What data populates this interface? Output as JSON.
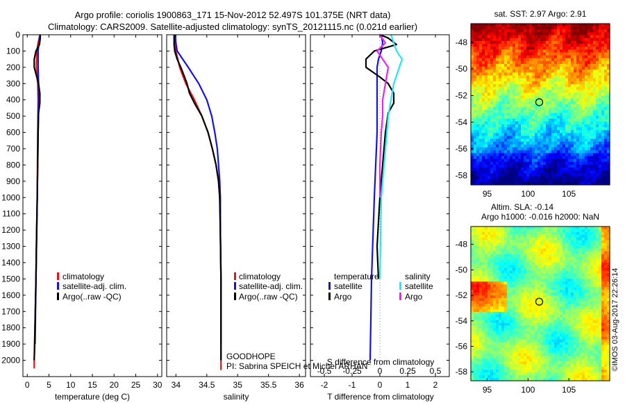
{
  "title_line1": "Argo profile: coriolis 1900863_171 15-Nov-2012 52.497S 101.375E (NRT data)",
  "title_line2": "Climatology: CARS2009. Satellite-adjusted climatology: synTS_20121115.nc (0.021d earlier)",
  "float_info": {
    "project": "GOODHOPE",
    "pi": "PI: Sabrina SPEICH et Michel ARHAN"
  },
  "credit": "©IMOS 03-Aug-2017 22:26:14",
  "colors": {
    "climatology": "#ee1111",
    "satellite": "#1111ee",
    "argo": "#000000",
    "s_satellite": "#22e8f0",
    "s_argo": "#ee22ee"
  },
  "chart_data": [
    {
      "type": "line",
      "xlabel": "temperature (deg C)",
      "ylabel": "",
      "xlim": [
        -1,
        31
      ],
      "ylim": [
        2100,
        0
      ],
      "xticks": [
        "0",
        "5",
        "10",
        "15",
        "20",
        "25",
        "30"
      ],
      "yticks": [
        "0",
        "100",
        "200",
        "300",
        "400",
        "500",
        "600",
        "700",
        "800",
        "900",
        "1000",
        "1100",
        "1200",
        "1300",
        "1400",
        "1500",
        "1600",
        "1700",
        "1800",
        "1900",
        "2000"
      ],
      "legend": [
        "climatology",
        "satellite-adj. clim.",
        "Argo(..raw -QC)"
      ],
      "series": [
        {
          "name": "climatology",
          "depth": [
            0,
            50,
            100,
            200,
            300,
            400,
            600,
            1000,
            1500,
            2000,
            2050
          ],
          "values": [
            2.9,
            2.5,
            2.2,
            2.1,
            2.4,
            2.5,
            2.4,
            2.3,
            2.0,
            1.6,
            1.6
          ]
        },
        {
          "name": "satellite-adj. clim.",
          "depth": [
            0,
            50,
            100,
            200,
            300,
            400,
            600,
            1000,
            1500,
            1900
          ],
          "values": [
            3.0,
            2.7,
            2.5,
            2.5,
            2.6,
            2.6,
            2.5,
            2.3,
            2.0,
            1.8
          ]
        },
        {
          "name": "Argo(..raw -QC)",
          "depth": [
            0,
            20,
            60,
            100,
            150,
            200,
            260,
            300,
            360,
            420,
            480,
            600,
            800,
            1000,
            1300,
            1500,
            1900,
            2000
          ],
          "values": [
            3.0,
            3.0,
            2.8,
            2.0,
            1.6,
            1.6,
            2.2,
            2.6,
            2.9,
            2.9,
            2.6,
            2.5,
            2.4,
            2.3,
            2.1,
            2.0,
            1.7,
            1.6
          ]
        }
      ]
    },
    {
      "type": "line",
      "xlabel": "salinity",
      "xlim": [
        33.85,
        36.1
      ],
      "ylim": [
        2100,
        0
      ],
      "xticks": [
        "34",
        "34.5",
        "35",
        "35.5",
        "36"
      ],
      "legend": [
        "climatology",
        "satellite-adj. clim.",
        "Argo(..raw -QC)"
      ],
      "series": [
        {
          "name": "climatology",
          "depth": [
            0,
            50,
            100,
            200,
            300,
            400,
            500,
            600,
            700,
            800,
            900,
            1000,
            1200,
            1500,
            2000,
            2060
          ],
          "values": [
            33.99,
            33.99,
            34.0,
            34.06,
            34.16,
            34.3,
            34.42,
            34.52,
            34.59,
            34.65,
            34.69,
            34.71,
            34.72,
            34.73,
            34.73,
            34.73
          ]
        },
        {
          "name": "satellite-adj. clim.",
          "depth": [
            0,
            50,
            100,
            200,
            300,
            400,
            500,
            600,
            700,
            800,
            900,
            1000,
            1200,
            1500,
            1900
          ],
          "values": [
            33.99,
            34.0,
            34.02,
            34.2,
            34.37,
            34.5,
            34.58,
            34.63,
            34.67,
            34.69,
            34.71,
            34.72,
            34.72,
            34.73,
            34.73
          ]
        },
        {
          "name": "Argo(..raw -QC)",
          "depth": [
            0,
            30,
            60,
            100,
            150,
            200,
            260,
            300,
            360,
            420,
            500,
            600,
            700,
            800,
            900,
            1000,
            1200,
            1500,
            2000
          ],
          "values": [
            33.97,
            33.97,
            33.97,
            33.98,
            34.02,
            34.08,
            34.14,
            34.18,
            34.22,
            34.3,
            34.42,
            34.52,
            34.59,
            34.65,
            34.69,
            34.71,
            34.72,
            34.73,
            34.73
          ]
        }
      ]
    },
    {
      "type": "line",
      "xlabel": "T difference from climatology",
      "xlabel_top": "S difference from climatology",
      "xlim": [
        -2.5,
        2.5
      ],
      "ylim": [
        2100,
        0
      ],
      "xticks": [
        "-2",
        "-1",
        "0",
        "1",
        "2"
      ],
      "xticks_top": [
        "-0.5",
        "-0.25",
        "0",
        "0.25",
        "0.5"
      ],
      "legend_headers": [
        "temperature",
        "salinity"
      ],
      "legend": [
        "satellite",
        "Argo",
        "satellite",
        "Argo"
      ],
      "series": [
        {
          "name": "satellite",
          "depth": [
            0,
            50,
            100,
            150,
            200,
            300,
            400,
            500,
            600,
            800,
            1000,
            1500,
            2000
          ],
          "values": [
            0.05,
            0.1,
            0.05,
            -0.05,
            -0.1,
            -0.1,
            -0.1,
            -0.1,
            -0.1,
            -0.15,
            -0.2,
            -0.3,
            -0.35
          ]
        },
        {
          "name": "Argo",
          "depth": [
            0,
            20,
            60,
            100,
            150,
            200,
            260,
            300,
            360,
            420,
            480,
            600,
            800,
            1000,
            1300,
            1500
          ],
          "values": [
            0.0,
            0.3,
            0.6,
            -0.2,
            -0.5,
            -0.5,
            0.0,
            0.3,
            0.5,
            0.5,
            0.3,
            0.2,
            0.1,
            0.0,
            -0.1,
            -0.05
          ]
        },
        {
          "name": "satellite",
          "depth": [
            0,
            50,
            100,
            150,
            200,
            250,
            300,
            400,
            500,
            600,
            800,
            1000,
            1500
          ],
          "values": [
            0.4,
            0.5,
            0.6,
            0.8,
            0.7,
            0.6,
            0.5,
            0.4,
            0.3,
            0.25,
            0.15,
            0.05,
            0.0
          ]
        },
        {
          "name": "Argo",
          "depth": [
            0,
            50,
            100,
            150,
            200,
            300,
            400,
            500,
            600,
            800,
            1000
          ],
          "values": [
            0.0,
            0.2,
            -0.1,
            0.1,
            0.3,
            0.2,
            0.1,
            0.1,
            0.05,
            0.0,
            0.0
          ]
        }
      ]
    }
  ],
  "map_sst": {
    "title": "sat. SST: 2.97  Argo: 2.91",
    "xticks": [
      "95",
      "100",
      "105"
    ],
    "yticks": [
      "-48",
      "-50",
      "-52",
      "-54",
      "-56",
      "-58"
    ],
    "xlim": [
      93,
      110
    ],
    "ylim": [
      -58.7,
      -46.6
    ],
    "marker": {
      "lon": 101.375,
      "lat": -52.497
    }
  },
  "map_sla": {
    "title1": "Altim. SLA: -0.14",
    "title2": "Argo h1000: -0.016 h2000: NaN",
    "xticks": [
      "95",
      "100",
      "105"
    ],
    "yticks": [
      "-48",
      "-50",
      "-52",
      "-54",
      "-56",
      "-58"
    ],
    "xlim": [
      93,
      110
    ],
    "ylim": [
      -58.7,
      -46.6
    ],
    "marker": {
      "lon": 101.375,
      "lat": -52.497
    }
  }
}
